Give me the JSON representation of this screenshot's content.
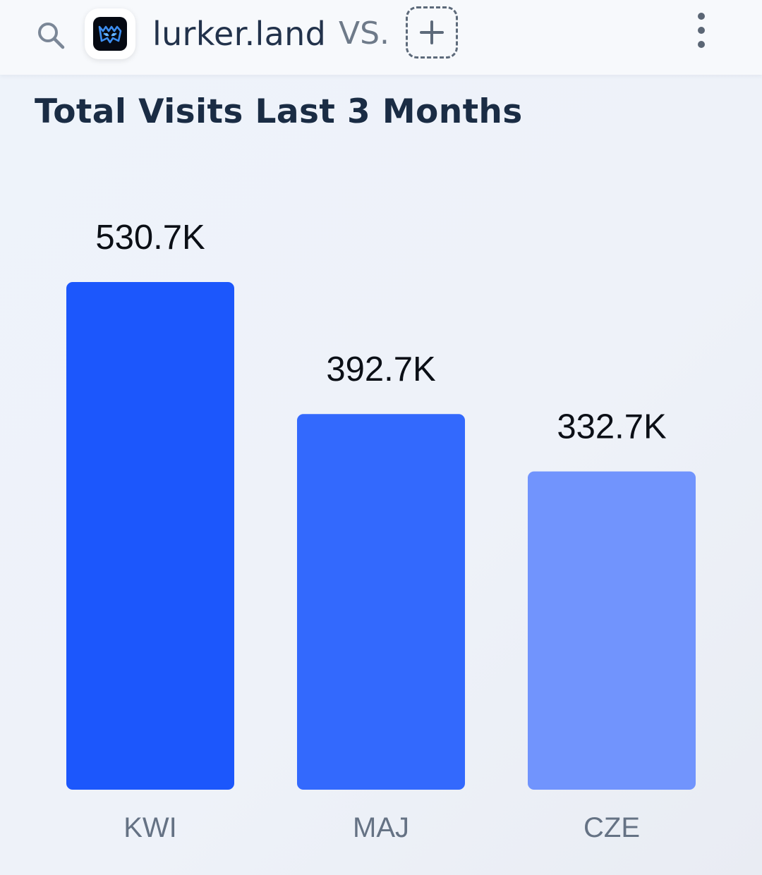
{
  "header": {
    "search_icon": "search-icon",
    "site_logo": "lurker-land-logo",
    "site_name": "lurker.land",
    "vs_label": "VS.",
    "add_icon": "plus-icon",
    "more_icon": "more-vertical-icon"
  },
  "chart_data": {
    "type": "bar",
    "title": "Total Visits Last 3 Months",
    "categories": [
      "KWI",
      "MAJ",
      "CZE"
    ],
    "values": [
      530700,
      392700,
      332700
    ],
    "value_labels": [
      "530.7K",
      "392.7K",
      "332.7K"
    ],
    "colors": [
      "#1c57fc",
      "#3369fd",
      "#7194fd"
    ],
    "grid": false,
    "legend": "none"
  }
}
